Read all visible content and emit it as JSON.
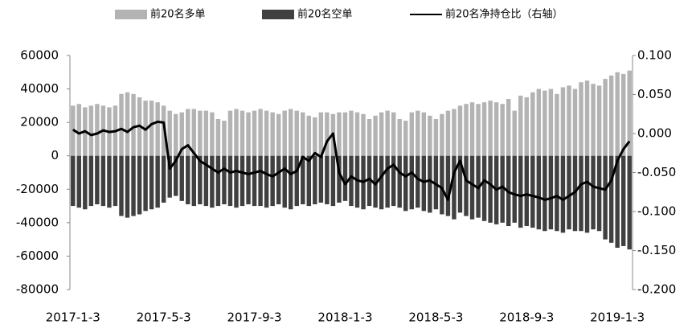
{
  "chart_data": {
    "type": "bar-line",
    "categories": [
      "2017-1-3",
      null,
      null,
      null,
      null,
      null,
      null,
      null,
      null,
      null,
      null,
      null,
      null,
      null,
      null,
      "2017-5-3",
      null,
      null,
      null,
      null,
      null,
      null,
      null,
      null,
      null,
      null,
      null,
      null,
      null,
      null,
      "2017-9-3",
      null,
      null,
      null,
      null,
      null,
      null,
      null,
      null,
      null,
      null,
      null,
      null,
      null,
      null,
      "2018-1-3",
      null,
      null,
      null,
      null,
      null,
      null,
      null,
      null,
      null,
      null,
      null,
      null,
      null,
      null,
      "2018-5-3",
      null,
      null,
      null,
      null,
      null,
      null,
      null,
      null,
      null,
      null,
      null,
      null,
      null,
      null,
      "2018-9-3",
      null,
      null,
      null,
      null,
      null,
      null,
      null,
      null,
      null,
      null,
      null,
      null,
      null,
      null,
      "2019-1-3",
      null,
      null
    ],
    "series": [
      {
        "name": "前20名多单",
        "color": "#b3b3b3",
        "kind": "bar",
        "values": [
          30000,
          31000,
          29000,
          30000,
          31000,
          30000,
          29000,
          30000,
          37000,
          38000,
          37000,
          35000,
          33000,
          33000,
          32000,
          30000,
          27000,
          25000,
          26000,
          28000,
          28000,
          27000,
          27000,
          26000,
          22000,
          21000,
          27000,
          28000,
          27000,
          26000,
          27000,
          28000,
          27000,
          26000,
          25000,
          27000,
          28000,
          27000,
          26000,
          24000,
          23000,
          26000,
          26000,
          25000,
          26000,
          26000,
          27000,
          26000,
          25000,
          22000,
          24000,
          26000,
          27000,
          26000,
          22000,
          21000,
          26000,
          27000,
          26000,
          24000,
          22000,
          25000,
          27000,
          28000,
          30000,
          31000,
          32000,
          31000,
          32000,
          33000,
          32000,
          31000,
          34000,
          27000,
          36000,
          35000,
          38000,
          40000,
          39000,
          40000,
          37000,
          41000,
          42000,
          40000,
          44000,
          45000,
          43000,
          42000,
          46000,
          48000,
          50000,
          49000,
          51000
        ]
      },
      {
        "name": "前20名空单",
        "color": "#404040",
        "kind": "bar",
        "values": [
          -30000,
          -31000,
          -32000,
          -30000,
          -29000,
          -30000,
          -31000,
          -30000,
          -36000,
          -37000,
          -36000,
          -35000,
          -33000,
          -32000,
          -31000,
          -28000,
          -25000,
          -24000,
          -27000,
          -29000,
          -30000,
          -29000,
          -30000,
          -31000,
          -30000,
          -29000,
          -30000,
          -31000,
          -30000,
          -29000,
          -30000,
          -30000,
          -31000,
          -30000,
          -29000,
          -31000,
          -32000,
          -30000,
          -29000,
          -30000,
          -29000,
          -28000,
          -29000,
          -30000,
          -28000,
          -27000,
          -30000,
          -31000,
          -32000,
          -30000,
          -31000,
          -32000,
          -31000,
          -30000,
          -31000,
          -33000,
          -32000,
          -31000,
          -33000,
          -34000,
          -32000,
          -35000,
          -36000,
          -38000,
          -34000,
          -36000,
          -38000,
          -37000,
          -39000,
          -40000,
          -41000,
          -40000,
          -42000,
          -40000,
          -43000,
          -42000,
          -43000,
          -44000,
          -45000,
          -44000,
          -45000,
          -46000,
          -44000,
          -45000,
          -45000,
          -46000,
          -44000,
          -45000,
          -50000,
          -52000,
          -55000,
          -54000,
          -56000
        ]
      },
      {
        "name": "前20名净持仓比（右轴）",
        "color": "#000000",
        "kind": "line",
        "axis": "y2",
        "values": [
          0.005,
          0.0,
          0.003,
          -0.002,
          0.0,
          0.004,
          0.002,
          0.003,
          0.006,
          0.002,
          0.008,
          0.01,
          0.005,
          0.012,
          0.015,
          0.014,
          -0.045,
          -0.035,
          -0.02,
          -0.015,
          -0.025,
          -0.035,
          -0.04,
          -0.045,
          -0.05,
          -0.045,
          -0.05,
          -0.048,
          -0.05,
          -0.052,
          -0.05,
          -0.048,
          -0.052,
          -0.055,
          -0.05,
          -0.045,
          -0.052,
          -0.048,
          -0.03,
          -0.035,
          -0.025,
          -0.03,
          -0.01,
          0.0,
          -0.05,
          -0.065,
          -0.055,
          -0.06,
          -0.062,
          -0.058,
          -0.065,
          -0.055,
          -0.045,
          -0.04,
          -0.05,
          -0.055,
          -0.05,
          -0.058,
          -0.062,
          -0.06,
          -0.065,
          -0.07,
          -0.085,
          -0.05,
          -0.035,
          -0.06,
          -0.065,
          -0.07,
          -0.06,
          -0.065,
          -0.072,
          -0.068,
          -0.075,
          -0.078,
          -0.08,
          -0.078,
          -0.08,
          -0.082,
          -0.085,
          -0.083,
          -0.08,
          -0.085,
          -0.08,
          -0.075,
          -0.065,
          -0.062,
          -0.068,
          -0.07,
          -0.072,
          -0.06,
          -0.035,
          -0.02,
          -0.01
        ]
      }
    ],
    "ylim": [
      -80000,
      60000
    ],
    "yticks": [
      -80000,
      -60000,
      -40000,
      -20000,
      0,
      20000,
      40000,
      60000
    ],
    "y2lim": [
      -0.2,
      0.1
    ],
    "y2ticks": [
      {
        "value": -0.2,
        "label": "-0.200"
      },
      {
        "value": -0.15,
        "label": "-0.150"
      },
      {
        "value": -0.1,
        "label": "-0.100"
      },
      {
        "value": -0.05,
        "label": "-0.050"
      },
      {
        "value": 0,
        "label": "0.000"
      },
      {
        "value": 0.05,
        "label": "0.050"
      },
      {
        "value": 0.1,
        "label": "0.100"
      }
    ],
    "legend": "top",
    "grid": false
  }
}
